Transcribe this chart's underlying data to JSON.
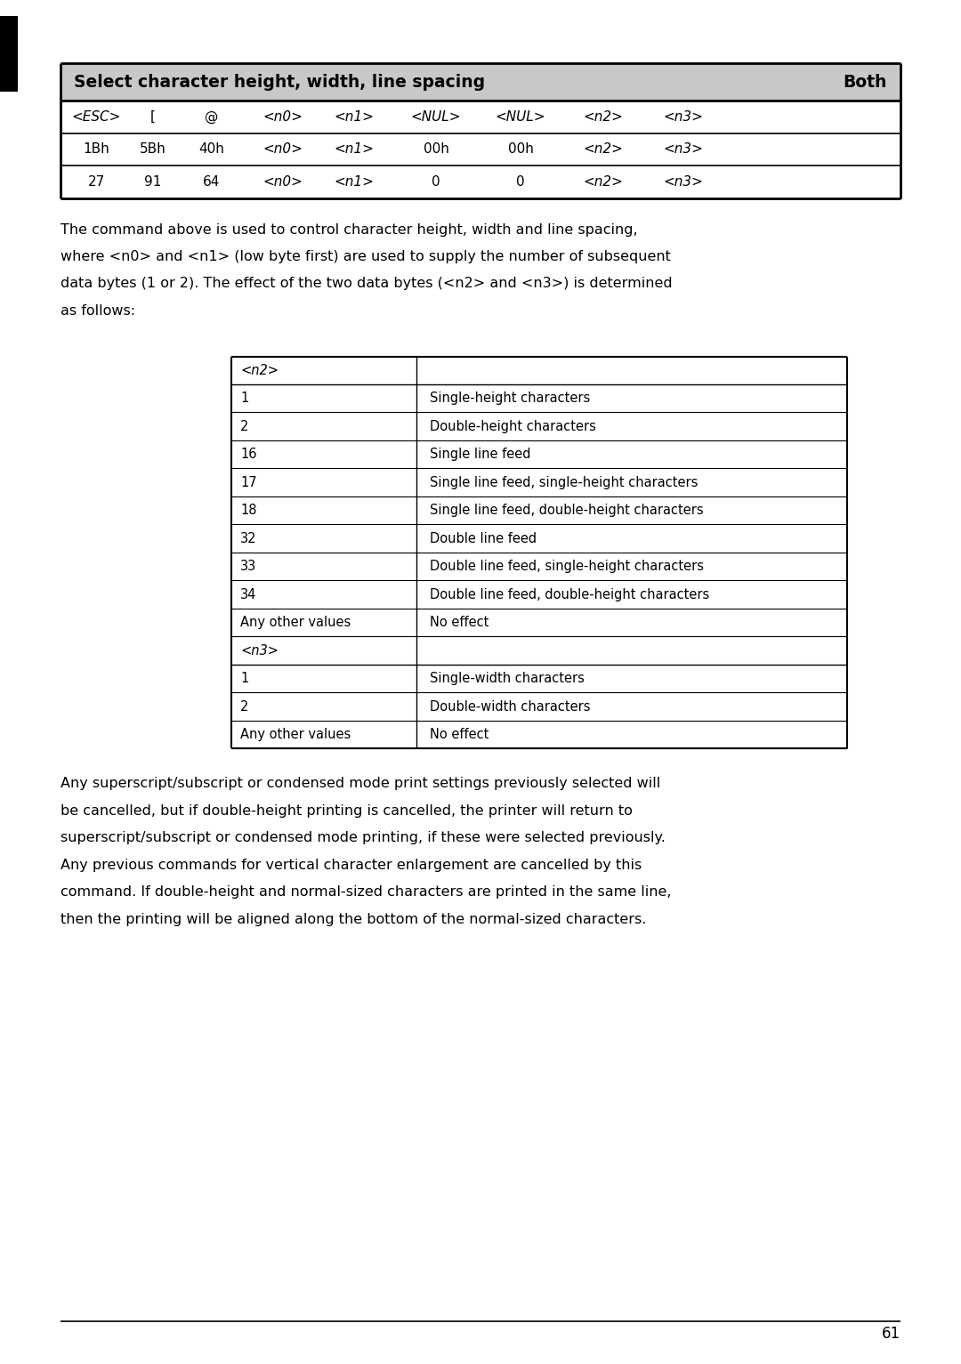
{
  "page_width": 10.8,
  "page_height": 15.33,
  "bg_color": "#ffffff",
  "top_table": {
    "title": "Select character height, width, line spacing",
    "title_right": "Both",
    "header_row": [
      "<ESC>",
      "[",
      "@",
      "<n0>",
      "<n1>",
      "<NUL>",
      "<NUL>",
      "<n2>",
      "<n3>"
    ],
    "row2": [
      "1Bh",
      "5Bh",
      "40h",
      "<n0>",
      "<n1>",
      "00h",
      "00h",
      "<n2>",
      "<n3>"
    ],
    "row3": [
      "27",
      "91",
      "64",
      "<n0>",
      "<n1>",
      "0",
      "0",
      "<n2>",
      "<n3>"
    ]
  },
  "n2_table": {
    "header": "<n2>",
    "rows": [
      [
        "1",
        "Single-height characters"
      ],
      [
        "2",
        "Double-height characters"
      ],
      [
        "16",
        "Single line feed"
      ],
      [
        "17",
        "Single line feed, single-height characters"
      ],
      [
        "18",
        "Single line feed, double-height characters"
      ],
      [
        "32",
        "Double line feed"
      ],
      [
        "33",
        "Double line feed, single-height characters"
      ],
      [
        "34",
        "Double line feed, double-height characters"
      ],
      [
        "Any other values",
        "No effect"
      ]
    ]
  },
  "n3_table": {
    "header": "<n3>",
    "rows": [
      [
        "1",
        "Single-width characters"
      ],
      [
        "2",
        "Double-width characters"
      ],
      [
        "Any other values",
        "No effect"
      ]
    ]
  },
  "p1_lines": [
    "The command above is used to control character height, width and line spacing,",
    "where <n0> and <n1> (low byte first) are used to supply the number of subsequent",
    "data bytes (1 or 2). The effect of the two data bytes (<n2> and <n3>) is determined",
    "as follows:"
  ],
  "p2_lines": [
    "Any superscript/subscript or condensed mode print settings previously selected will",
    "be cancelled, but if double-height printing is cancelled, the printer will return to",
    "superscript/subscript or condensed mode printing, if these were selected previously.",
    "Any previous commands for vertical character enlargement are cancelled by this",
    "command. If double-height and normal-sized characters are printed in the same line,",
    "then the printing will be aligned along the bottom of the normal-sized characters."
  ],
  "page_number": "61",
  "left_bar_color": "#000000",
  "title_bg_color": "#c8c8c8"
}
